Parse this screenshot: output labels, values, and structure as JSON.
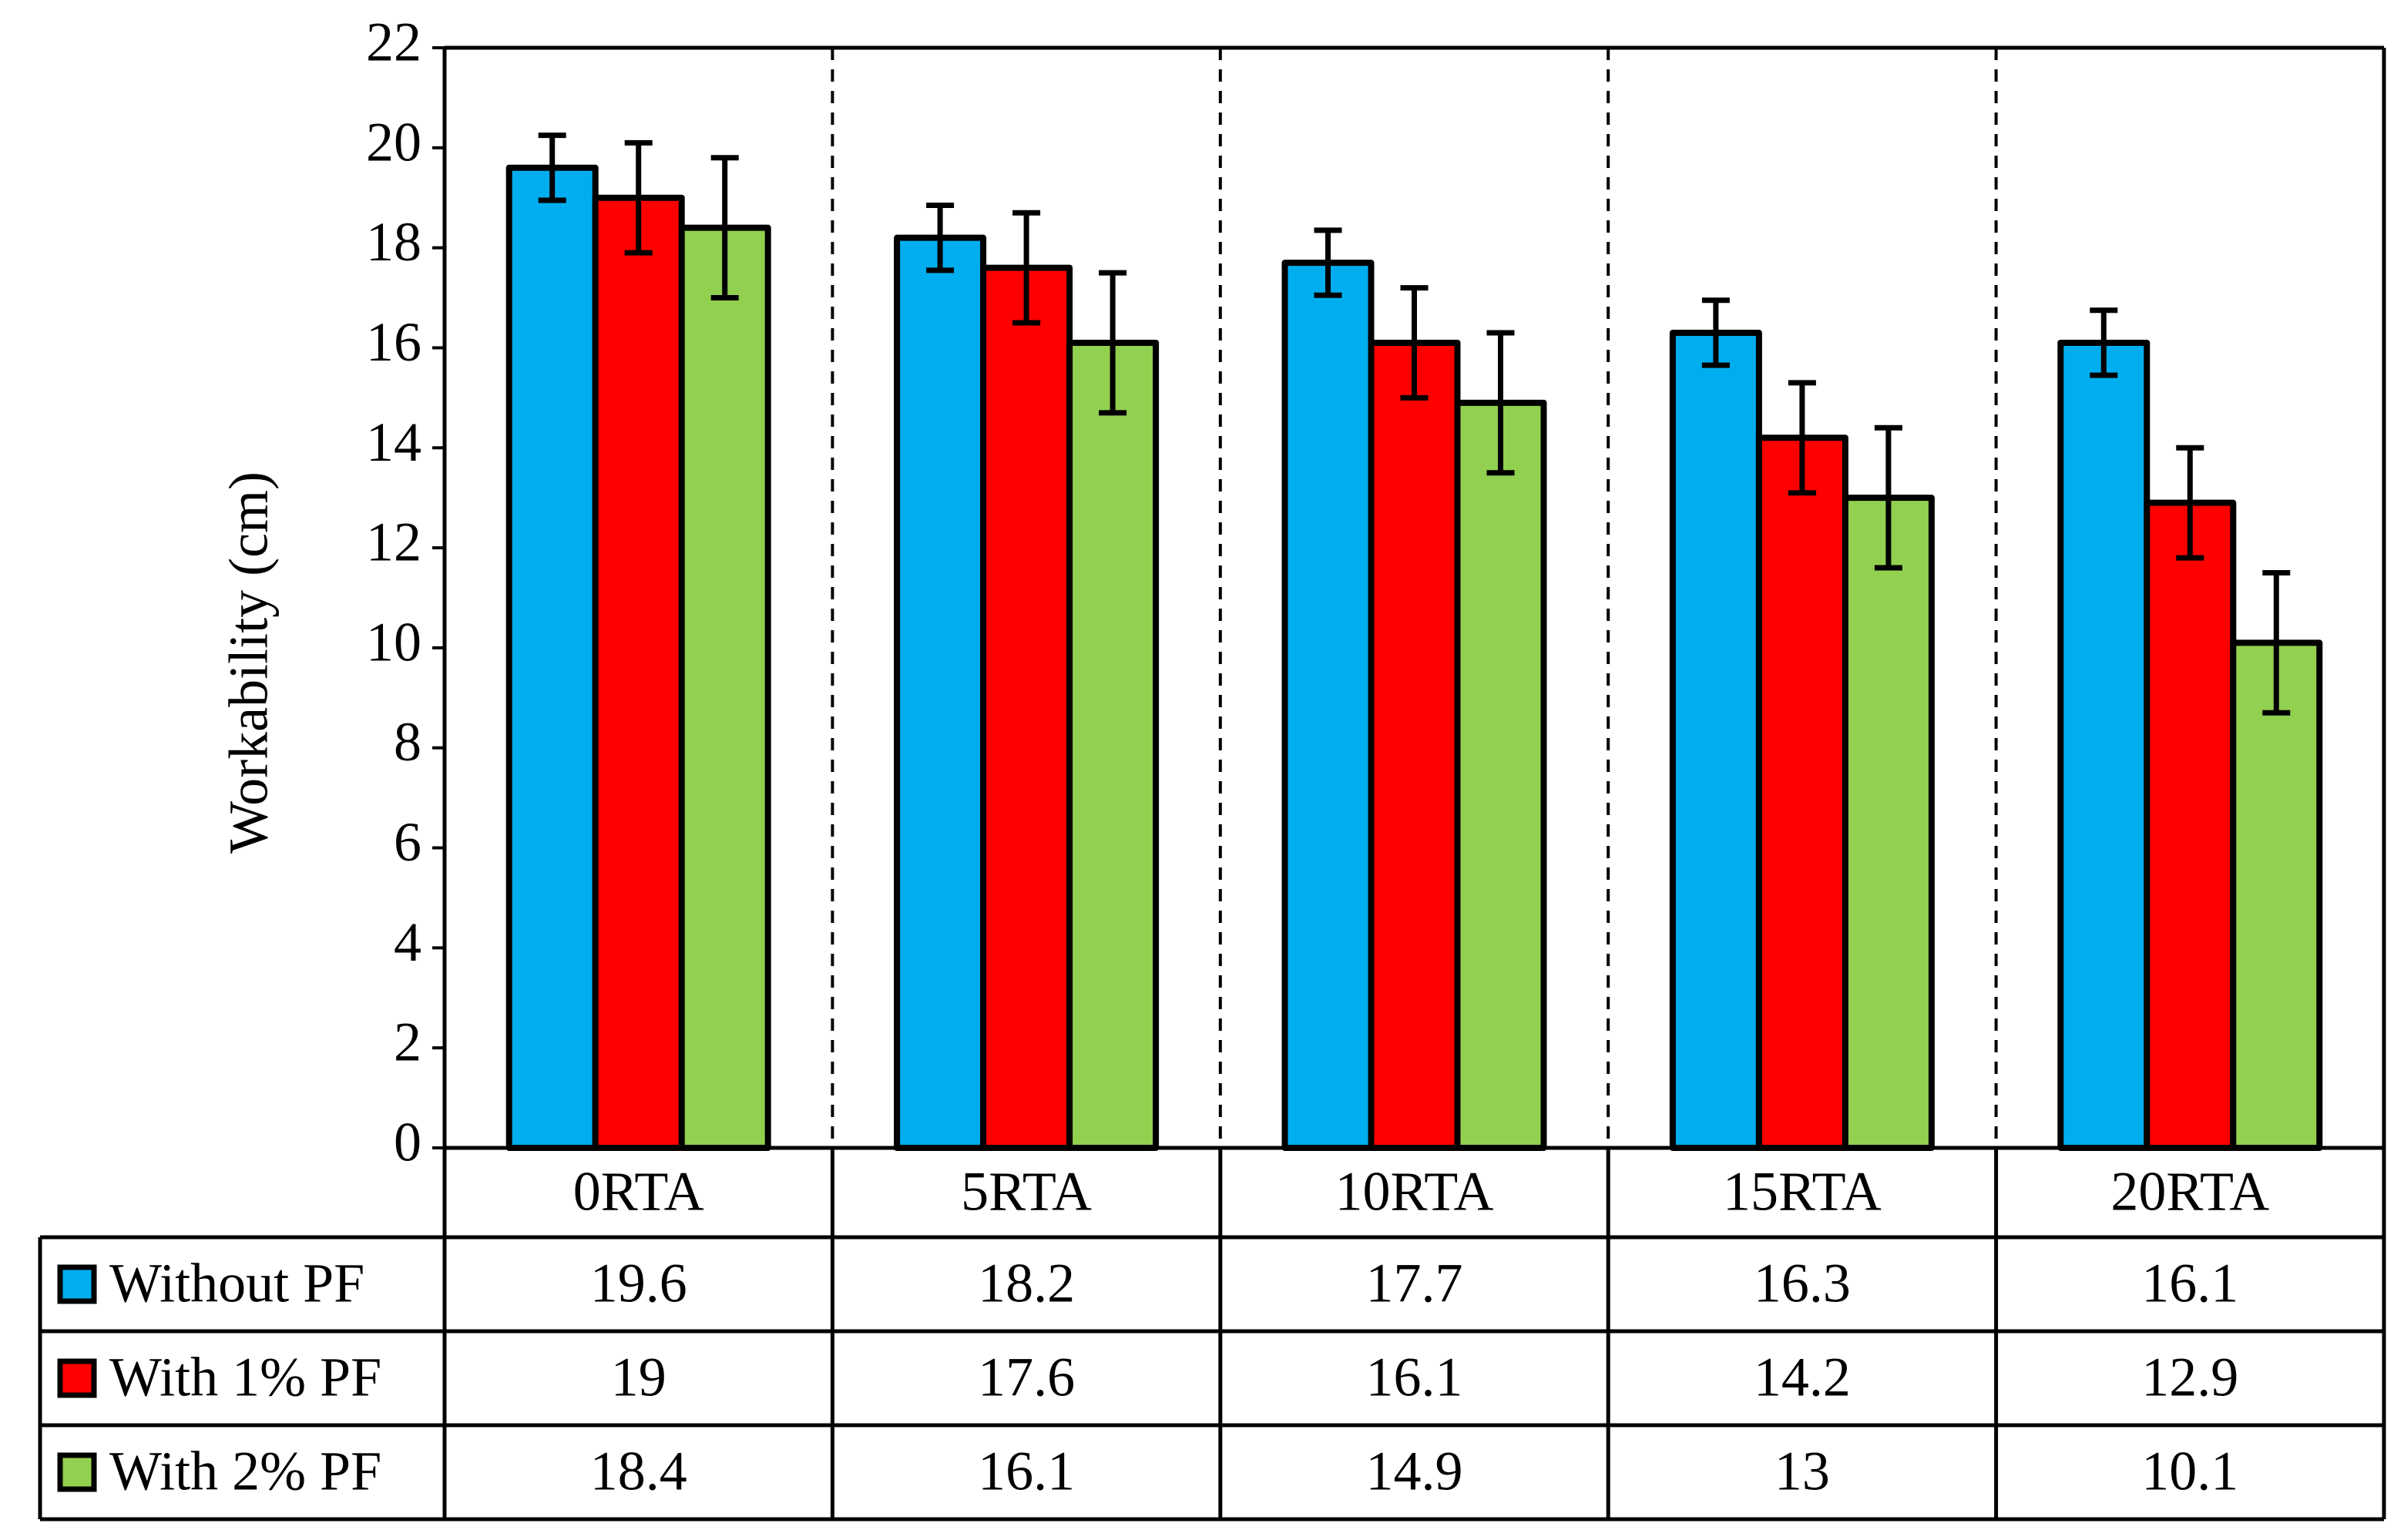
{
  "chart_data": {
    "type": "bar",
    "title": "",
    "xlabel": "",
    "ylabel": "Workability (cm)",
    "ylim": [
      0,
      22
    ],
    "yticks": [
      0,
      2,
      4,
      6,
      8,
      10,
      12,
      14,
      16,
      18,
      20,
      22
    ],
    "ytick_labels": [
      "0",
      "2",
      "4",
      "6",
      "8",
      "10",
      "12",
      "14",
      "16",
      "18",
      "20",
      "22"
    ],
    "categories": [
      "0RTA",
      "5RTA",
      "10RTA",
      "15RTA",
      "20RTA"
    ],
    "grid": false,
    "legend": "data-table",
    "series": [
      {
        "name": "Without PF",
        "color": "#00AEEF",
        "values": [
          19.6,
          18.2,
          17.7,
          16.3,
          16.1
        ],
        "labels": [
          "19.6",
          "18.2",
          "17.7",
          "16.3",
          "16.1"
        ],
        "errors": [
          0.65,
          0.65,
          0.65,
          0.65,
          0.65
        ]
      },
      {
        "name": "With 1% PF",
        "color": "#FF0000",
        "values": [
          19,
          17.6,
          16.1,
          14.2,
          12.9
        ],
        "labels": [
          "19",
          "17.6",
          "16.1",
          "14.2",
          "12.9"
        ],
        "errors": [
          1.1,
          1.1,
          1.1,
          1.1,
          1.1
        ]
      },
      {
        "name": "With 2% PF",
        "color": "#92D050",
        "values": [
          18.4,
          16.1,
          14.9,
          13,
          10.1
        ],
        "labels": [
          "18.4",
          "16.1",
          "14.9",
          "13",
          "10.1"
        ],
        "errors": [
          1.4,
          1.4,
          1.4,
          1.4,
          1.4
        ]
      }
    ]
  }
}
